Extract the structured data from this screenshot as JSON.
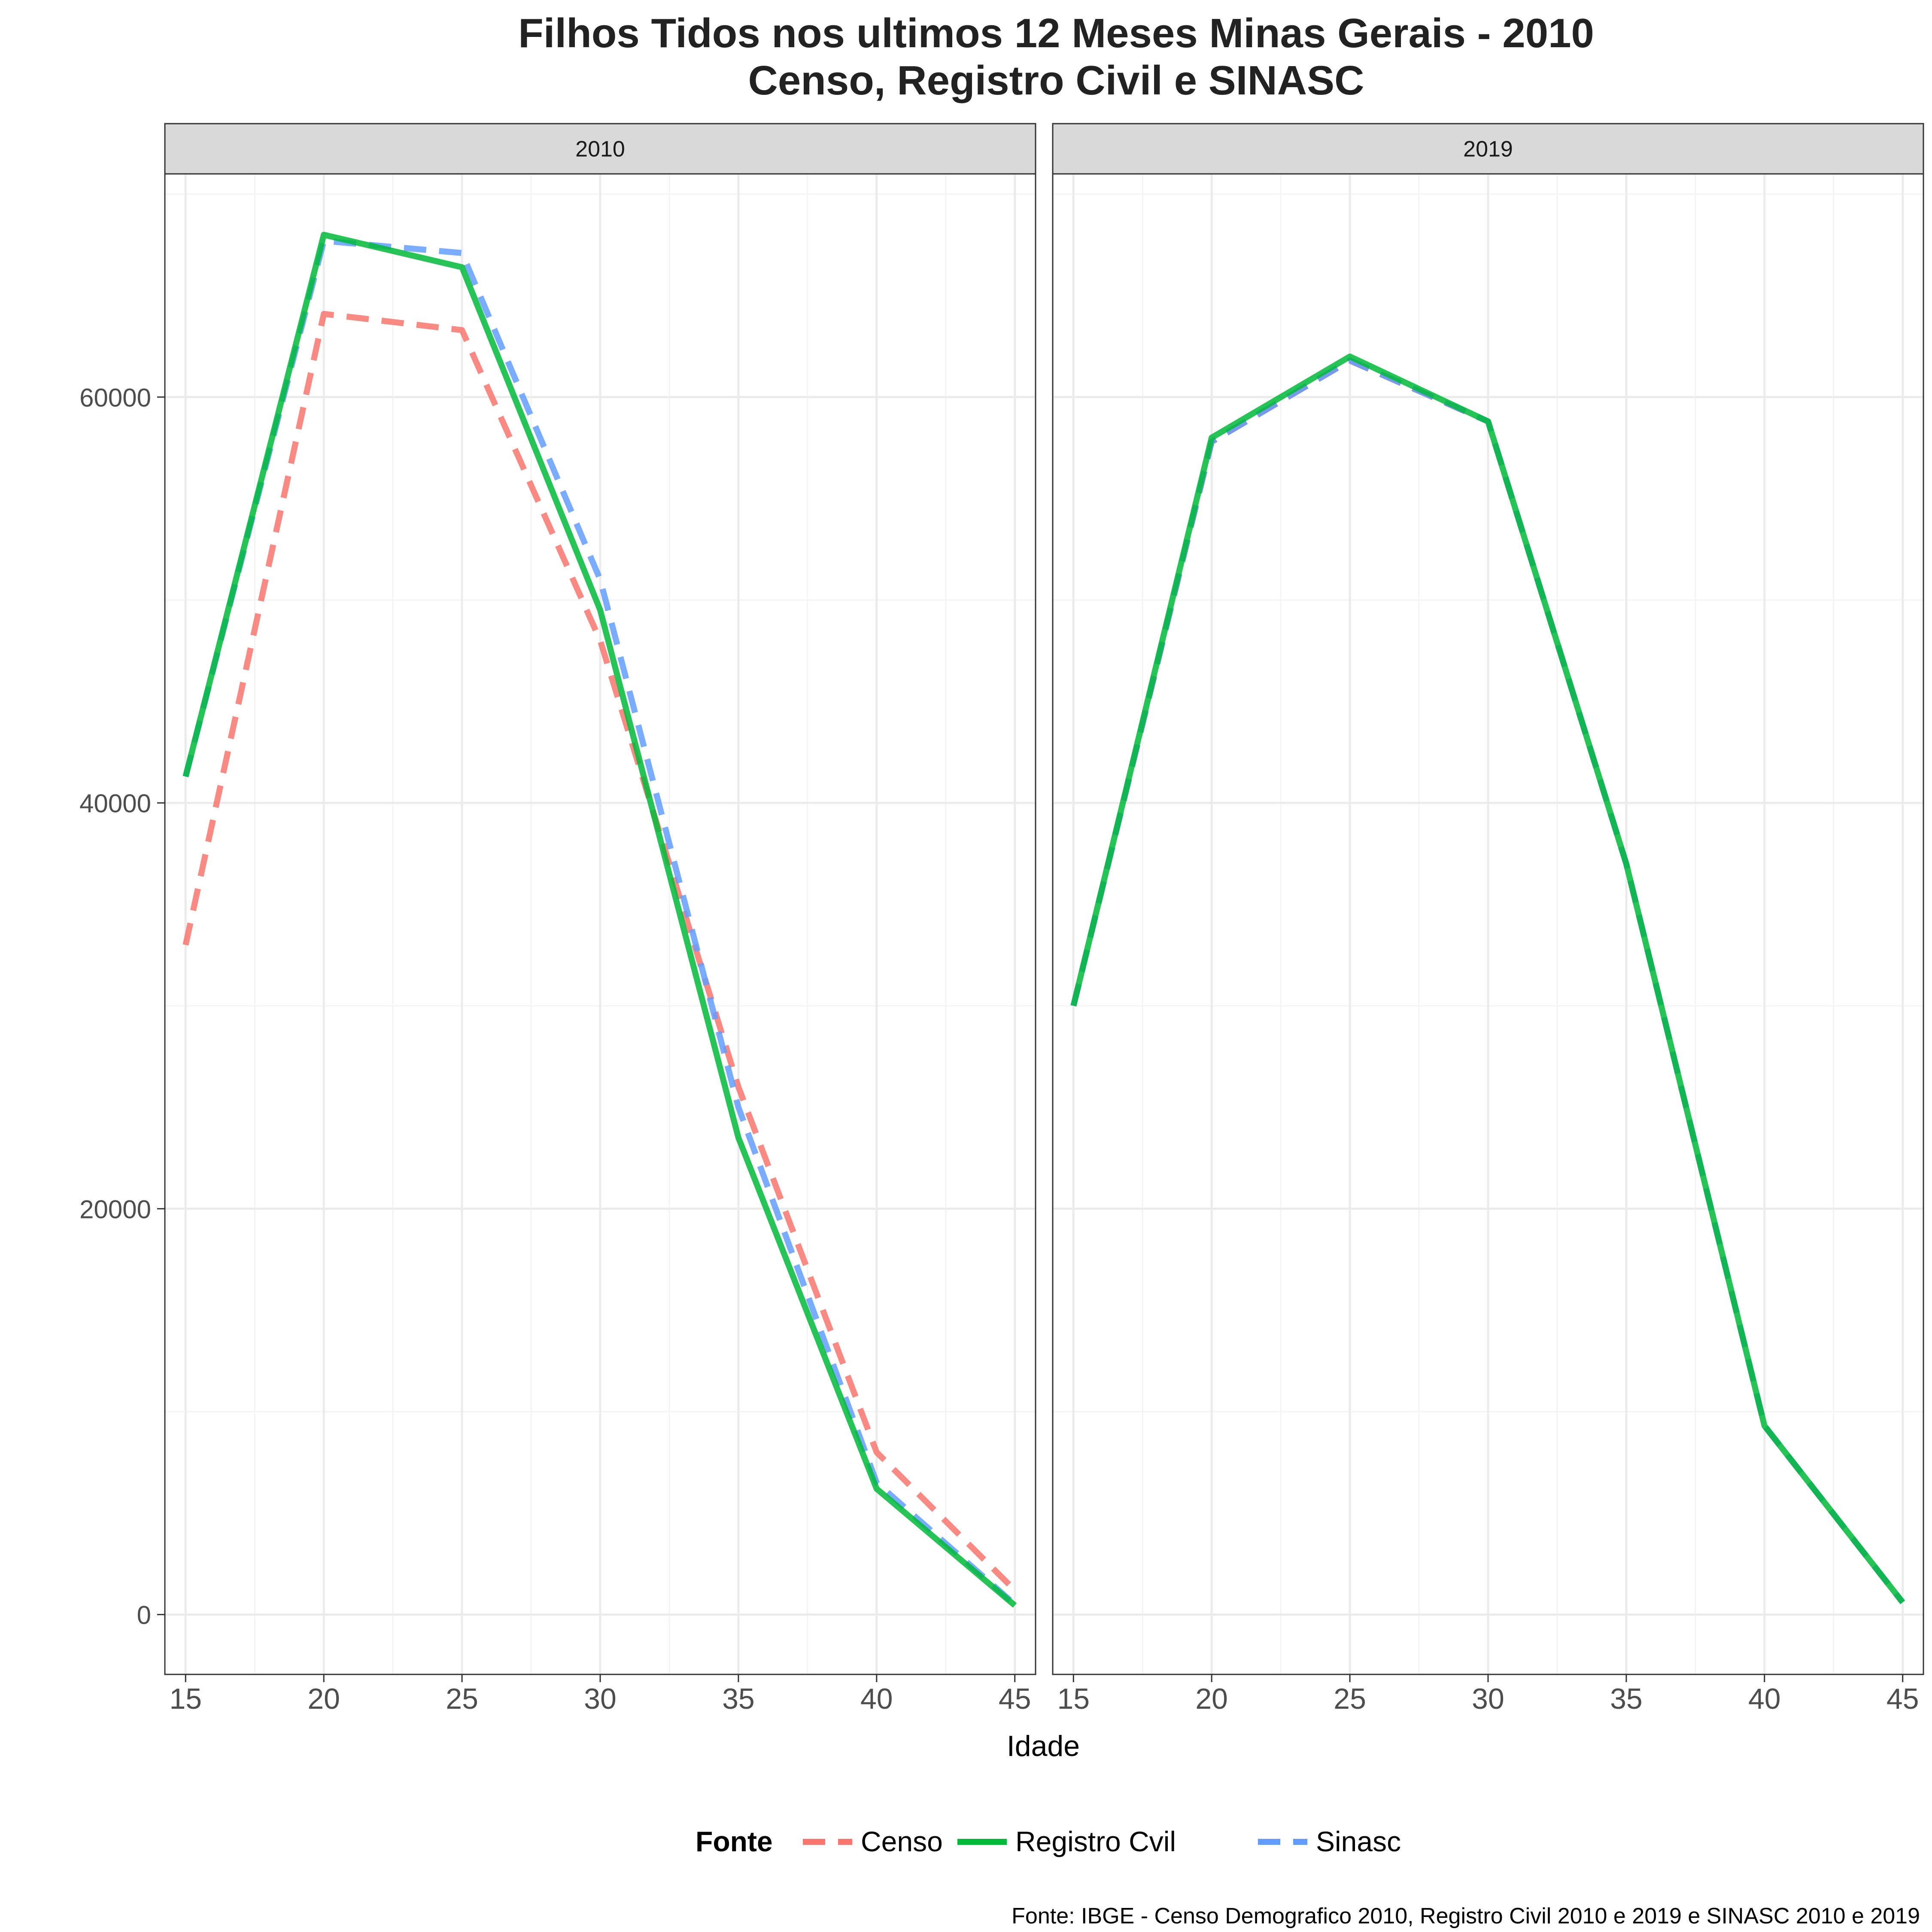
{
  "chart_data": {
    "type": "line",
    "title": "Filhos Tidos nos ultimos 12 Meses Minas Gerais - 2010",
    "subtitle": "Censo, Registro Civil e SINASC",
    "xlabel": "Idade",
    "ylabel": "",
    "x": [
      15,
      20,
      25,
      30,
      35,
      40,
      45
    ],
    "x_ticks": [
      "15",
      "20",
      "25",
      "30",
      "35",
      "40",
      "45"
    ],
    "y_ticks": [
      "0",
      "20000",
      "40000",
      "60000"
    ],
    "xlim": [
      14.25,
      45.75
    ],
    "ylim": [
      -2950,
      71000
    ],
    "grid": true,
    "legend": {
      "title": "Fonte",
      "position": "bottom",
      "entries": [
        {
          "label": "Censo",
          "color": "#F8766D",
          "dash": "dashed"
        },
        {
          "label": "Registro Cvil",
          "color": "#00BA38",
          "dash": "solid"
        },
        {
          "label": "Sinasc",
          "color": "#619CFF",
          "dash": "dashed"
        }
      ]
    },
    "panels": [
      {
        "label": "2010",
        "series": [
          {
            "name": "Censo",
            "values": [
              33000,
              64100,
              63300,
              48000,
              26000,
              8000,
              1200
            ]
          },
          {
            "name": "Sinasc",
            "values": [
              41300,
              67700,
              67100,
              51000,
              25000,
              6500,
              500
            ]
          },
          {
            "name": "Registro Cvil",
            "values": [
              41300,
              68000,
              66400,
              49500,
              23500,
              6200,
              450
            ]
          }
        ]
      },
      {
        "label": "2019",
        "series": [
          {
            "name": "Censo",
            "values": [
              30000,
              57800,
              61800,
              58800,
              37000,
              9300,
              600
            ]
          },
          {
            "name": "Sinasc",
            "values": [
              30000,
              57800,
              61800,
              58800,
              37000,
              9300,
              600
            ]
          },
          {
            "name": "Registro Cvil",
            "values": [
              30000,
              58000,
              62000,
              58800,
              37000,
              9300,
              600
            ]
          }
        ]
      }
    ],
    "caption": "Fonte: IBGE - Censo Demografico 2010, Registro Civil 2010 e 2019 e SINASC 2010 e 2019"
  }
}
